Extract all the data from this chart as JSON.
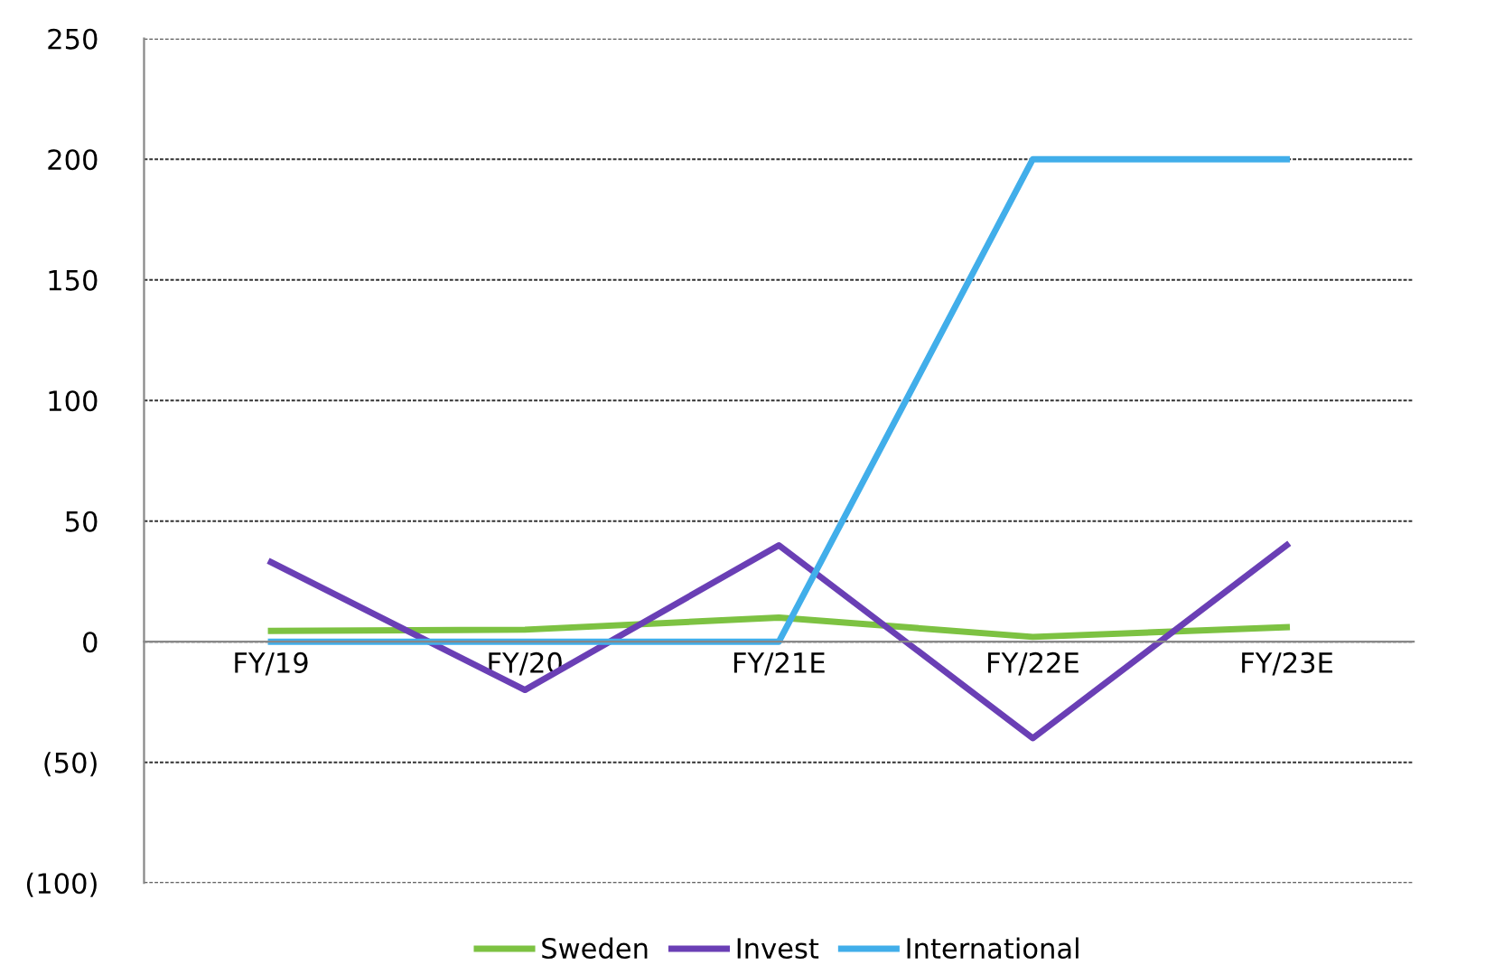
{
  "chart_data": {
    "type": "line",
    "categories": [
      "FY/19",
      "FY/20",
      "FY/21E",
      "FY/22E",
      "FY/23E"
    ],
    "series": [
      {
        "name": "Sweden",
        "color": "#7dc242",
        "values": [
          4.5,
          5,
          10,
          2,
          6
        ]
      },
      {
        "name": "Invest",
        "color": "#6a3fb5",
        "values": [
          33,
          -20,
          40,
          -40,
          40
        ]
      },
      {
        "name": "International",
        "color": "#41aeea",
        "values": [
          0,
          0,
          0,
          200,
          200
        ]
      }
    ],
    "ylim": [
      -100,
      250
    ],
    "yticks": [
      {
        "value": -100,
        "label": "(100)"
      },
      {
        "value": -50,
        "label": "(50)"
      },
      0,
      50,
      100,
      150,
      200,
      250
    ],
    "grid": "y",
    "legend": "bottom",
    "marker": "none",
    "line_style": "solid"
  }
}
